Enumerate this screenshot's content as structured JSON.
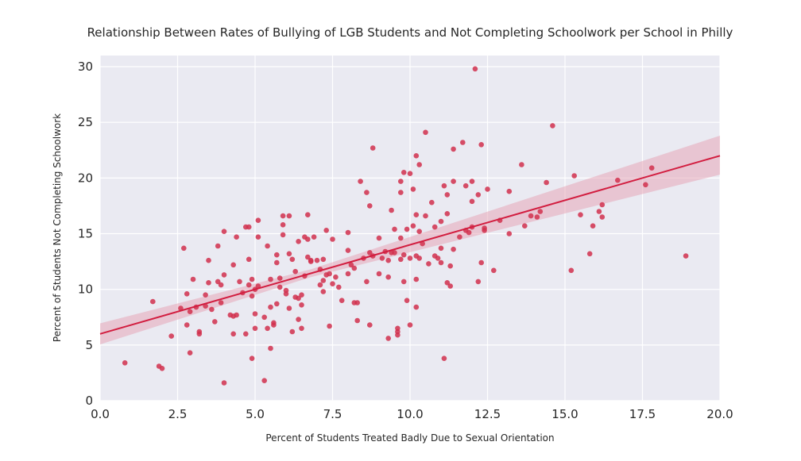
{
  "chart_data": {
    "type": "scatter",
    "title": "Relationship Between Rates of Bullying of LGB Students and Not Completing Schoolwork per School in Philly",
    "xlabel": "Percent of Students Treated Badly Due to Sexual Orientation",
    "ylabel": "Percent of Students Not Completing Schoolwork",
    "xlim": [
      0,
      20
    ],
    "ylim": [
      0,
      31
    ],
    "xticks": [
      0,
      2.5,
      5,
      7.5,
      10,
      12.5,
      15,
      17.5,
      20
    ],
    "xtick_labels": [
      "0.0",
      "2.5",
      "5.0",
      "7.5",
      "10.0",
      "12.5",
      "15.0",
      "17.5",
      "20.0"
    ],
    "yticks": [
      0,
      5,
      10,
      15,
      20,
      25,
      30
    ],
    "ytick_labels": [
      "0",
      "5",
      "10",
      "15",
      "20",
      "25",
      "30"
    ],
    "grid": true,
    "regression": {
      "x": [
        0,
        20
      ],
      "y": [
        6.0,
        22.0
      ],
      "ci_upper": [
        6.95,
        23.8
      ],
      "ci_lower": [
        5.05,
        20.3
      ],
      "ci_mid": {
        "x": 6.8,
        "upper": 11.8,
        "lower": 11.1
      }
    },
    "points": [
      [
        0.8,
        3.4
      ],
      [
        1.7,
        8.9
      ],
      [
        1.9,
        3.1
      ],
      [
        2.0,
        2.9
      ],
      [
        2.3,
        5.8
      ],
      [
        2.6,
        8.3
      ],
      [
        2.7,
        13.7
      ],
      [
        2.8,
        6.8
      ],
      [
        2.8,
        9.6
      ],
      [
        2.9,
        4.3
      ],
      [
        2.9,
        8.0
      ],
      [
        3.0,
        10.9
      ],
      [
        3.1,
        8.4
      ],
      [
        3.2,
        6.2
      ],
      [
        3.2,
        6.0
      ],
      [
        3.4,
        9.5
      ],
      [
        3.4,
        8.5
      ],
      [
        3.5,
        12.6
      ],
      [
        3.5,
        10.6
      ],
      [
        3.6,
        8.2
      ],
      [
        3.7,
        7.1
      ],
      [
        3.8,
        10.7
      ],
      [
        3.8,
        13.9
      ],
      [
        3.9,
        8.8
      ],
      [
        3.9,
        10.4
      ],
      [
        4.0,
        1.6
      ],
      [
        4.0,
        11.3
      ],
      [
        4.0,
        15.2
      ],
      [
        4.2,
        7.7
      ],
      [
        4.3,
        7.6
      ],
      [
        4.3,
        6.0
      ],
      [
        4.3,
        12.2
      ],
      [
        4.4,
        14.7
      ],
      [
        4.4,
        7.7
      ],
      [
        4.5,
        10.7
      ],
      [
        4.6,
        9.7
      ],
      [
        4.7,
        15.6
      ],
      [
        4.7,
        6.0
      ],
      [
        4.8,
        15.6
      ],
      [
        4.8,
        12.7
      ],
      [
        4.8,
        10.4
      ],
      [
        4.9,
        3.8
      ],
      [
        4.9,
        9.4
      ],
      [
        4.9,
        10.9
      ],
      [
        5.0,
        10.0
      ],
      [
        5.0,
        7.8
      ],
      [
        5.0,
        6.5
      ],
      [
        5.1,
        16.2
      ],
      [
        5.1,
        14.7
      ],
      [
        5.1,
        10.3
      ],
      [
        5.3,
        7.5
      ],
      [
        5.3,
        1.8
      ],
      [
        5.4,
        13.9
      ],
      [
        5.4,
        6.5
      ],
      [
        5.5,
        10.9
      ],
      [
        5.5,
        8.4
      ],
      [
        5.5,
        4.7
      ],
      [
        5.6,
        7.0
      ],
      [
        5.6,
        6.8
      ],
      [
        5.7,
        12.4
      ],
      [
        5.7,
        13.1
      ],
      [
        5.7,
        8.7
      ],
      [
        5.8,
        11.0
      ],
      [
        5.8,
        10.2
      ],
      [
        5.9,
        14.9
      ],
      [
        5.9,
        16.6
      ],
      [
        5.9,
        15.8
      ],
      [
        6.0,
        9.9
      ],
      [
        6.0,
        9.6
      ],
      [
        6.1,
        8.3
      ],
      [
        6.1,
        16.6
      ],
      [
        6.1,
        13.2
      ],
      [
        6.2,
        12.7
      ],
      [
        6.2,
        6.2
      ],
      [
        6.3,
        11.6
      ],
      [
        6.3,
        9.3
      ],
      [
        6.4,
        14.3
      ],
      [
        6.4,
        9.2
      ],
      [
        6.4,
        7.3
      ],
      [
        6.5,
        6.5
      ],
      [
        6.5,
        8.6
      ],
      [
        6.5,
        9.5
      ],
      [
        6.6,
        14.7
      ],
      [
        6.6,
        11.2
      ],
      [
        6.7,
        16.7
      ],
      [
        6.7,
        14.5
      ],
      [
        6.7,
        12.9
      ],
      [
        6.8,
        12.5
      ],
      [
        6.8,
        12.6
      ],
      [
        6.9,
        14.7
      ],
      [
        7.0,
        12.6
      ],
      [
        7.1,
        11.8
      ],
      [
        7.1,
        10.4
      ],
      [
        7.2,
        10.8
      ],
      [
        7.2,
        9.8
      ],
      [
        7.2,
        12.7
      ],
      [
        7.3,
        15.3
      ],
      [
        7.3,
        11.3
      ],
      [
        7.4,
        11.4
      ],
      [
        7.4,
        6.7
      ],
      [
        7.5,
        10.5
      ],
      [
        7.5,
        14.5
      ],
      [
        7.6,
        11.1
      ],
      [
        7.7,
        10.2
      ],
      [
        7.8,
        9.0
      ],
      [
        8.0,
        11.4
      ],
      [
        8.0,
        15.1
      ],
      [
        8.0,
        13.5
      ],
      [
        8.1,
        12.2
      ],
      [
        8.2,
        8.8
      ],
      [
        8.2,
        11.9
      ],
      [
        8.3,
        7.2
      ],
      [
        8.3,
        8.8
      ],
      [
        8.4,
        19.7
      ],
      [
        8.5,
        12.8
      ],
      [
        8.6,
        10.7
      ],
      [
        8.6,
        18.7
      ],
      [
        8.7,
        17.5
      ],
      [
        8.7,
        6.8
      ],
      [
        8.7,
        13.3
      ],
      [
        8.8,
        22.7
      ],
      [
        8.8,
        13.0
      ],
      [
        9.0,
        14.6
      ],
      [
        9.0,
        11.4
      ],
      [
        9.1,
        12.8
      ],
      [
        9.2,
        13.4
      ],
      [
        9.3,
        5.6
      ],
      [
        9.3,
        11.1
      ],
      [
        9.3,
        12.6
      ],
      [
        9.4,
        13.3
      ],
      [
        9.4,
        17.1
      ],
      [
        9.5,
        13.3
      ],
      [
        9.5,
        15.4
      ],
      [
        9.6,
        6.5
      ],
      [
        9.6,
        6.2
      ],
      [
        9.6,
        5.9
      ],
      [
        9.7,
        19.7
      ],
      [
        9.7,
        18.7
      ],
      [
        9.7,
        14.6
      ],
      [
        9.7,
        12.7
      ],
      [
        9.8,
        20.5
      ],
      [
        9.8,
        13.1
      ],
      [
        9.8,
        10.7
      ],
      [
        9.9,
        15.4
      ],
      [
        9.9,
        9.0
      ],
      [
        10.0,
        6.8
      ],
      [
        10.0,
        20.4
      ],
      [
        10.0,
        12.8
      ],
      [
        10.1,
        15.7
      ],
      [
        10.1,
        19.0
      ],
      [
        10.2,
        22.0
      ],
      [
        10.2,
        16.7
      ],
      [
        10.2,
        13.0
      ],
      [
        10.2,
        10.9
      ],
      [
        10.2,
        8.4
      ],
      [
        10.3,
        21.2
      ],
      [
        10.3,
        15.2
      ],
      [
        10.3,
        12.8
      ],
      [
        10.4,
        14.1
      ],
      [
        10.5,
        24.1
      ],
      [
        10.5,
        16.6
      ],
      [
        10.6,
        12.3
      ],
      [
        10.7,
        17.8
      ],
      [
        10.8,
        15.6
      ],
      [
        10.8,
        13.0
      ],
      [
        10.9,
        12.8
      ],
      [
        11.0,
        16.1
      ],
      [
        11.0,
        13.7
      ],
      [
        11.0,
        12.4
      ],
      [
        11.1,
        19.3
      ],
      [
        11.1,
        3.8
      ],
      [
        11.2,
        18.5
      ],
      [
        11.2,
        16.8
      ],
      [
        11.2,
        10.6
      ],
      [
        11.3,
        12.1
      ],
      [
        11.3,
        10.3
      ],
      [
        11.4,
        22.6
      ],
      [
        11.4,
        19.7
      ],
      [
        11.4,
        13.6
      ],
      [
        11.6,
        14.7
      ],
      [
        11.7,
        23.2
      ],
      [
        11.8,
        19.3
      ],
      [
        11.8,
        15.3
      ],
      [
        11.9,
        15.1
      ],
      [
        12.0,
        17.9
      ],
      [
        12.0,
        15.6
      ],
      [
        12.0,
        19.7
      ],
      [
        12.1,
        29.8
      ],
      [
        12.2,
        18.5
      ],
      [
        12.2,
        10.7
      ],
      [
        12.3,
        23.0
      ],
      [
        12.3,
        12.4
      ],
      [
        12.4,
        15.3
      ],
      [
        12.4,
        15.5
      ],
      [
        12.5,
        19.0
      ],
      [
        12.7,
        11.7
      ],
      [
        12.9,
        16.2
      ],
      [
        13.2,
        18.8
      ],
      [
        13.2,
        15.0
      ],
      [
        13.6,
        21.2
      ],
      [
        13.7,
        15.7
      ],
      [
        13.9,
        16.6
      ],
      [
        14.1,
        16.5
      ],
      [
        14.2,
        17.0
      ],
      [
        14.4,
        19.6
      ],
      [
        14.6,
        24.7
      ],
      [
        15.2,
        11.7
      ],
      [
        15.3,
        20.2
      ],
      [
        15.5,
        16.7
      ],
      [
        15.8,
        13.2
      ],
      [
        15.9,
        15.7
      ],
      [
        16.1,
        17.0
      ],
      [
        16.2,
        17.6
      ],
      [
        16.2,
        16.5
      ],
      [
        16.7,
        19.8
      ],
      [
        17.6,
        19.4
      ],
      [
        17.8,
        20.9
      ],
      [
        18.9,
        13.0
      ]
    ],
    "colors": {
      "point": "#d1304d",
      "line": "#d21d3f",
      "band": "#e6a0b2",
      "plot_background": "#eaeaf2",
      "grid": "#ffffff"
    }
  }
}
